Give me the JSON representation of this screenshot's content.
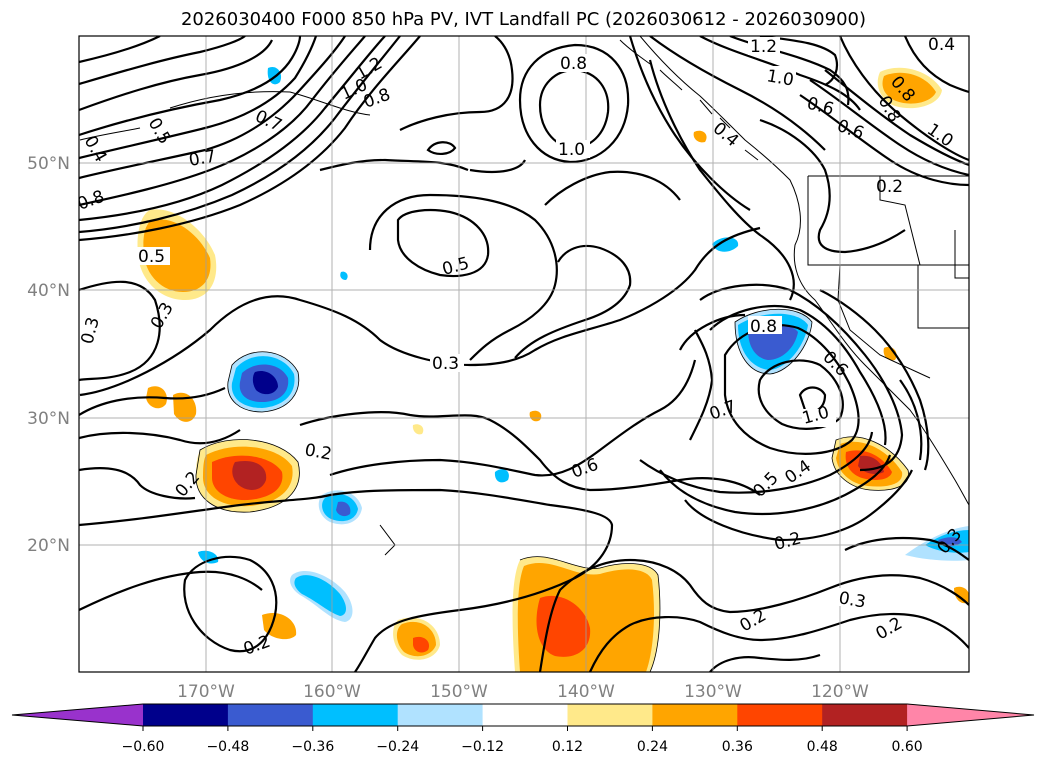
{
  "title": "2026030400 F000 850 hPa PV, IVT Landfall PC (2026030612 - 2026030900)",
  "lat_labels": [
    "50°N",
    "40°N",
    "30°N",
    "20°N"
  ],
  "lon_labels": [
    "170°W",
    "160°W",
    "150°W",
    "140°W",
    "130°W",
    "120°W"
  ],
  "colorbar": {
    "ticks": [
      "−0.60",
      "−0.48",
      "−0.36",
      "−0.24",
      "−0.12",
      "0.12",
      "0.24",
      "0.36",
      "0.48",
      "0.60"
    ],
    "colors": [
      "#9932cc",
      "#00008b",
      "#3a5bd0",
      "#00bfff",
      "#b0e2ff",
      "#ffffff",
      "#ffe98a",
      "#ffa500",
      "#ff4500",
      "#b22222",
      "#ff85a8"
    ]
  },
  "contour_labels": [
    "1.2",
    "0.4",
    "0.8",
    "1.0",
    "1.2",
    "1.0",
    "0.8",
    "0.6",
    "0.8",
    "1.0",
    "0.4",
    "0.5",
    "0.7",
    "0.4",
    "1.0",
    "0.6",
    "0.7",
    "0.8",
    "0.5",
    "0.2",
    "0.5",
    "0.3",
    "0.3",
    "0.8",
    "0.6",
    "0.3",
    "0.7",
    "1.0",
    "0.6",
    "0.2",
    "0.5",
    "0.4",
    "0.2",
    "0.2",
    "0.2",
    "0.3",
    "0.2",
    "0.2",
    "0.3",
    "0.8"
  ],
  "chart_data": {
    "type": "heatmap",
    "title": "2026030400 F000 850 hPa PV, IVT Landfall PC (2026030612 - 2026030900)",
    "lon_range": [
      -180,
      -110
    ],
    "lat_range": [
      10,
      60
    ],
    "contour_field": "850 hPa PV",
    "contour_levels": [
      0.2,
      0.3,
      0.4,
      0.5,
      0.6,
      0.7,
      0.8,
      1.0,
      1.2
    ],
    "fill_field": "IVT Landfall PC",
    "fill_levels": [
      -0.6,
      -0.48,
      -0.36,
      -0.24,
      -0.12,
      0.12,
      0.24,
      0.36,
      0.48,
      0.6
    ],
    "colorbar_extend": "both"
  }
}
